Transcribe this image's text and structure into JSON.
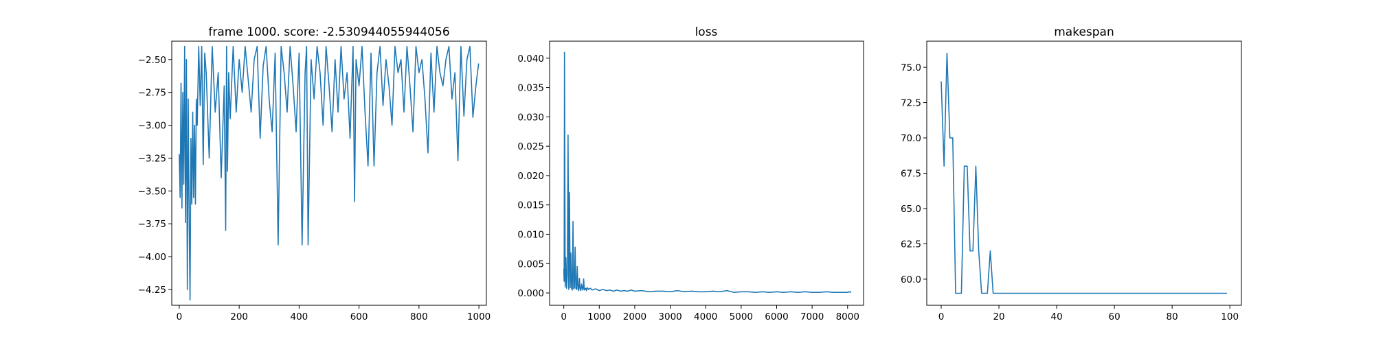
{
  "chart_data": [
    {
      "type": "line",
      "title": "frame 1000. score: -2.530944055944056",
      "xlabel": "",
      "ylabel": "",
      "xlim": [
        -25,
        1025
      ],
      "ylim": [
        -4.37,
        -2.36
      ],
      "xticks": [
        0,
        200,
        400,
        600,
        800,
        1000
      ],
      "xtick_labels": [
        "0",
        "200",
        "400",
        "600",
        "800",
        "1000"
      ],
      "yticks": [
        -4.25,
        -4.0,
        -3.75,
        -3.5,
        -3.25,
        -3.0,
        -2.75,
        -2.5
      ],
      "ytick_labels": [
        "−4.25",
        "−4.00",
        "−3.75",
        "−3.50",
        "−3.25",
        "−3.00",
        "−2.75",
        "−2.50"
      ],
      "series": [
        {
          "color": "#1f77b4",
          "x": [
            0,
            3,
            6,
            9,
            12,
            15,
            18,
            21,
            24,
            27,
            30,
            33,
            36,
            39,
            42,
            45,
            48,
            51,
            54,
            57,
            60,
            65,
            70,
            75,
            80,
            85,
            90,
            100,
            110,
            120,
            130,
            140,
            150,
            155,
            158,
            161,
            165,
            170,
            180,
            190,
            200,
            210,
            220,
            230,
            240,
            250,
            260,
            270,
            280,
            290,
            300,
            310,
            320,
            330,
            340,
            350,
            360,
            370,
            380,
            390,
            400,
            410,
            420,
            425,
            430,
            440,
            450,
            460,
            470,
            480,
            490,
            500,
            510,
            520,
            530,
            540,
            550,
            560,
            570,
            580,
            585,
            590,
            600,
            610,
            620,
            630,
            640,
            650,
            660,
            670,
            680,
            690,
            700,
            710,
            720,
            730,
            740,
            750,
            760,
            770,
            780,
            790,
            800,
            810,
            820,
            830,
            840,
            850,
            860,
            870,
            880,
            890,
            900,
            910,
            920,
            930,
            940,
            950,
            960,
            970,
            980,
            990,
            999
          ],
          "y": [
            -3.22,
            -3.55,
            -2.68,
            -3.63,
            -2.75,
            -3.45,
            -2.4,
            -3.74,
            -2.5,
            -4.25,
            -2.8,
            -3.7,
            -4.33,
            -3.1,
            -3.6,
            -2.9,
            -3.55,
            -3.0,
            -3.6,
            -2.8,
            -3.0,
            -2.4,
            -2.85,
            -2.4,
            -3.3,
            -2.45,
            -2.6,
            -3.25,
            -2.4,
            -2.9,
            -2.6,
            -3.4,
            -2.7,
            -3.8,
            -2.4,
            -3.35,
            -2.6,
            -2.95,
            -2.4,
            -2.9,
            -2.5,
            -2.75,
            -2.4,
            -2.65,
            -2.9,
            -2.5,
            -2.4,
            -3.1,
            -2.55,
            -2.4,
            -2.8,
            -3.05,
            -2.45,
            -3.91,
            -2.4,
            -2.6,
            -2.9,
            -2.4,
            -2.7,
            -3.05,
            -2.45,
            -3.91,
            -2.6,
            -2.4,
            -3.91,
            -2.5,
            -2.8,
            -2.4,
            -2.6,
            -3.0,
            -2.4,
            -2.7,
            -3.05,
            -2.5,
            -2.9,
            -2.4,
            -2.8,
            -2.6,
            -3.1,
            -2.4,
            -3.58,
            -2.5,
            -2.7,
            -2.4,
            -2.9,
            -3.31,
            -2.45,
            -3.31,
            -2.6,
            -2.4,
            -2.85,
            -2.5,
            -2.7,
            -3.0,
            -2.4,
            -2.6,
            -2.5,
            -2.9,
            -2.4,
            -2.7,
            -3.05,
            -2.4,
            -2.6,
            -2.5,
            -2.8,
            -3.21,
            -2.45,
            -2.9,
            -2.4,
            -2.6,
            -2.7,
            -2.5,
            -2.4,
            -2.8,
            -2.6,
            -3.27,
            -2.4,
            -2.93,
            -2.5,
            -2.4,
            -2.94,
            -2.7,
            -2.53
          ]
        }
      ]
    },
    {
      "type": "line",
      "title": "loss",
      "xlabel": "",
      "ylabel": "",
      "xlim": [
        -400,
        8450
      ],
      "ylim": [
        -0.0021,
        0.0429
      ],
      "xticks": [
        0,
        1000,
        2000,
        3000,
        4000,
        5000,
        6000,
        7000,
        8000
      ],
      "xtick_labels": [
        "0",
        "1000",
        "2000",
        "3000",
        "4000",
        "5000",
        "6000",
        "7000",
        "8000"
      ],
      "yticks": [
        0.0,
        0.005,
        0.01,
        0.015,
        0.02,
        0.025,
        0.03,
        0.035,
        0.04
      ],
      "ytick_labels": [
        "0.000",
        "0.005",
        "0.010",
        "0.015",
        "0.020",
        "0.025",
        "0.030",
        "0.035",
        "0.040"
      ],
      "series": [
        {
          "color": "#1f77b4",
          "x": [
            0,
            10,
            20,
            40,
            60,
            80,
            100,
            120,
            140,
            160,
            180,
            200,
            220,
            240,
            260,
            280,
            300,
            320,
            340,
            360,
            380,
            400,
            420,
            440,
            460,
            480,
            500,
            520,
            540,
            560,
            580,
            600,
            620,
            640,
            660,
            700,
            750,
            800,
            900,
            1000,
            1100,
            1200,
            1300,
            1400,
            1500,
            1600,
            1700,
            1800,
            1900,
            2000,
            2200,
            2400,
            2600,
            2800,
            3000,
            3200,
            3400,
            3600,
            3800,
            4000,
            4200,
            4400,
            4600,
            4800,
            5000,
            5200,
            5400,
            5600,
            5800,
            6000,
            6200,
            6400,
            6600,
            6800,
            7000,
            7200,
            7400,
            7600,
            7800,
            8000,
            8050,
            8100
          ],
          "y": [
            0.0041,
            0.002,
            0.041,
            0.001,
            0.006,
            0.0008,
            0.003,
            0.0269,
            0.0006,
            0.0171,
            0.0009,
            0.0068,
            0.0008,
            0.0005,
            0.0122,
            0.0007,
            0.0009,
            0.0078,
            0.0008,
            0.0006,
            0.0045,
            0.0007,
            0.0004,
            0.0025,
            0.0007,
            0.0004,
            0.0015,
            0.0008,
            0.0005,
            0.0024,
            0.0005,
            0.0007,
            0.0008,
            0.0004,
            0.0009,
            0.0006,
            0.0008,
            0.0005,
            0.0007,
            0.0004,
            0.0006,
            0.0004,
            0.0005,
            0.0003,
            0.0005,
            0.0003,
            0.0004,
            0.0003,
            0.0005,
            0.0003,
            0.0004,
            0.0002,
            0.0003,
            0.0003,
            0.0002,
            0.0004,
            0.0002,
            0.0003,
            0.0002,
            0.0002,
            0.0003,
            0.0002,
            0.0004,
            0.0001,
            0.0002,
            0.0002,
            0.0001,
            0.0002,
            0.0001,
            0.0002,
            0.0001,
            0.0002,
            0.0001,
            0.0002,
            0.0001,
            0.0001,
            0.0002,
            0.0001,
            0.0001,
            0.0001,
            0.0002,
            0.0001
          ]
        }
      ]
    },
    {
      "type": "line",
      "title": "makespan",
      "xlabel": "",
      "ylabel": "",
      "xlim": [
        -5,
        104
      ],
      "ylim": [
        58.15,
        76.85
      ],
      "xticks": [
        0,
        20,
        40,
        60,
        80,
        100
      ],
      "xtick_labels": [
        "0",
        "20",
        "40",
        "60",
        "80",
        "100"
      ],
      "yticks": [
        60.0,
        62.5,
        65.0,
        67.5,
        70.0,
        72.5,
        75.0
      ],
      "ytick_labels": [
        "60.0",
        "62.5",
        "65.0",
        "67.5",
        "70.0",
        "72.5",
        "75.0"
      ],
      "series": [
        {
          "color": "#1f77b4",
          "x": [
            0,
            1,
            2,
            3,
            4,
            5,
            6,
            7,
            8,
            9,
            10,
            11,
            12,
            13,
            14,
            15,
            16,
            17,
            18,
            19,
            20,
            40,
            60,
            80,
            99
          ],
          "y": [
            74,
            68,
            76,
            70,
            70,
            59,
            59,
            59,
            68,
            68,
            62,
            62,
            68,
            62,
            59,
            59,
            59,
            62,
            59,
            59,
            59,
            59,
            59,
            59,
            59
          ]
        }
      ]
    }
  ]
}
